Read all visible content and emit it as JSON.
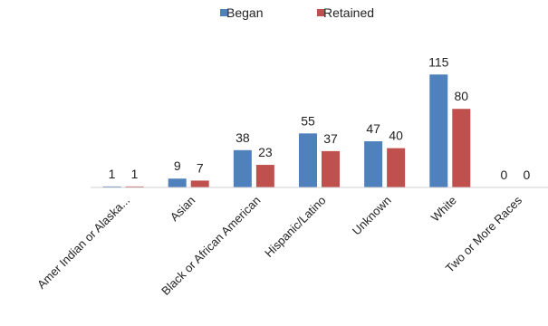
{
  "chart_data": {
    "type": "bar",
    "title": "",
    "xlabel": "",
    "ylabel": "",
    "categories": [
      "Amer Indian or Alaska...",
      "Asian",
      "Black or African American",
      "Hispanic/Latino",
      "Unknown",
      "White",
      "Two or More Races"
    ],
    "series": [
      {
        "name": "Began",
        "color": "#4F81BD",
        "values": [
          1,
          9,
          38,
          55,
          47,
          115,
          0
        ]
      },
      {
        "name": "Retained",
        "color": "#C0504D",
        "values": [
          1,
          7,
          23,
          37,
          40,
          80,
          0
        ]
      }
    ],
    "ylim": [
      0,
      130
    ],
    "grid": false,
    "legend": "top-center",
    "data_labels": true
  }
}
